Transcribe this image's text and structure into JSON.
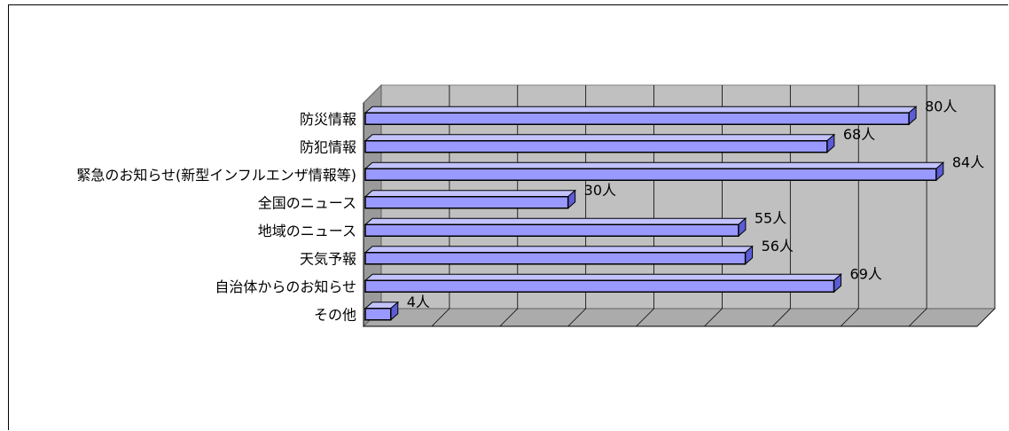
{
  "chart_data": {
    "type": "bar",
    "orientation": "horizontal",
    "style": "3d",
    "categories": [
      "防災情報",
      "防犯情報",
      "緊急のお知らせ(新型インフルエンザ情報等)",
      "全国のニュース",
      "地域のニュース",
      "天気予報",
      "自治体からのお知らせ",
      "その他"
    ],
    "values": [
      80,
      68,
      84,
      30,
      55,
      56,
      69,
      4
    ],
    "value_labels": [
      "80人",
      "68人",
      "84人",
      "30人",
      "55人",
      "56人",
      "69人",
      "4人"
    ],
    "title": "",
    "xlabel": "",
    "ylabel": "",
    "xlim": [
      0,
      90
    ],
    "grid": true,
    "bar_color": "#9999ff",
    "bar_top_color": "#c2c2ff",
    "bar_side_color": "#5c5cd6",
    "wall_color": "#c0c0c0",
    "floor_color": "#ababab"
  }
}
